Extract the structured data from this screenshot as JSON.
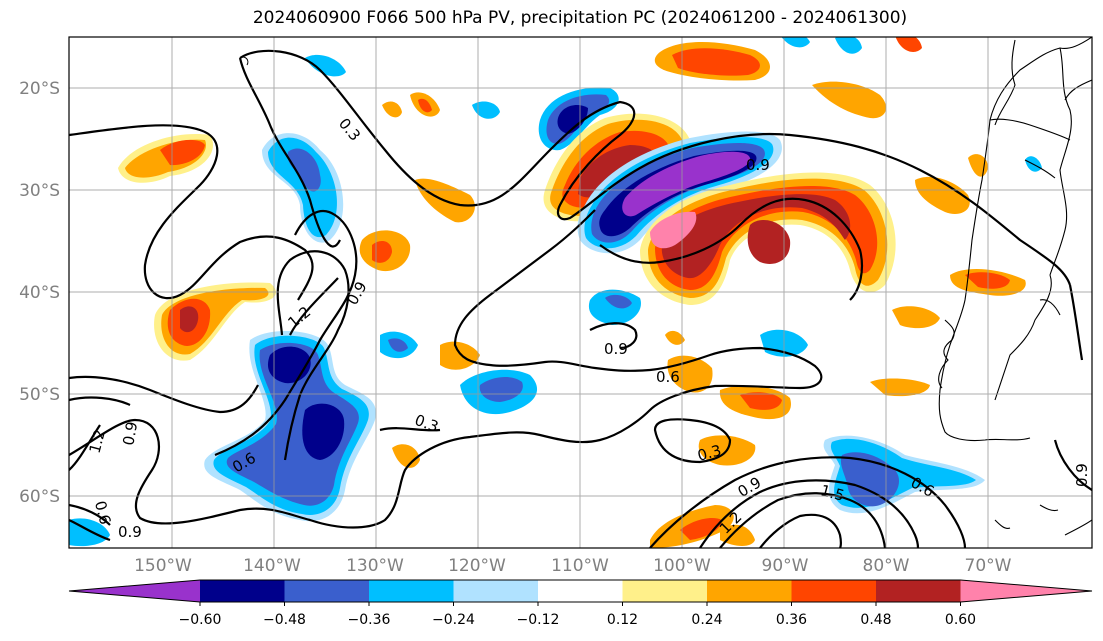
{
  "title": "2024060900 F066 500 hPa PV, precipitation PC (2024061200 - 2024061300)",
  "lat_ticks": [
    "20°S",
    "30°S",
    "40°S",
    "50°S",
    "60°S"
  ],
  "lon_ticks": [
    "150°W",
    "140°W",
    "130°W",
    "120°W",
    "110°W",
    "100°W",
    "90°W",
    "80°W",
    "70°W"
  ],
  "colorbar": {
    "labels": [
      "−0.60",
      "−0.48",
      "−0.36",
      "−0.24",
      "−0.12",
      "0.12",
      "0.24",
      "0.36",
      "0.48",
      "0.60"
    ],
    "colors": [
      "#9932cc",
      "#00008b",
      "#3a5fcd",
      "#00bfff",
      "#b0e2ff",
      "#ffffff",
      "#fff08a",
      "#ffa500",
      "#ff4500",
      "#b22222",
      "#ff82ab"
    ]
  },
  "contour_labels": [
    "0.3",
    "0.9",
    "1.2",
    "0.9",
    "0.6",
    "0.3",
    "0.6",
    "0.9",
    "0.3",
    "0.9",
    "1.2",
    "1.5",
    "0.6",
    "0.9",
    "1.2",
    "0.9",
    "0.9",
    "0.6"
  ]
}
